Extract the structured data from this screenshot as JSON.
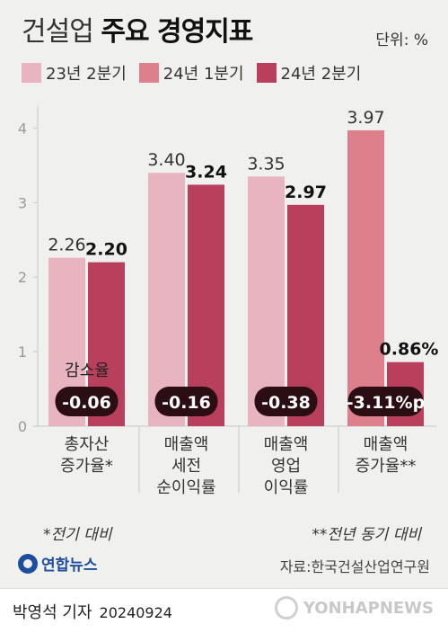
{
  "header": {
    "title_light": "건설업",
    "title_bold": "주요 경영지표",
    "unit": "단위: %"
  },
  "legend": [
    {
      "label": "23년 2분기",
      "color": "#e8b4bf"
    },
    {
      "label": "24년 1분기",
      "color": "#de7f8c"
    },
    {
      "label": "24년 2분기",
      "color": "#b8405c"
    }
  ],
  "chart_data": {
    "type": "bar",
    "categories": [
      [
        "총자산",
        "증가율*"
      ],
      [
        "매출액",
        "세전",
        "순이익률"
      ],
      [
        "매출액",
        "영업",
        "이익률"
      ],
      [
        "매출액",
        "증가율**"
      ]
    ],
    "groups": [
      {
        "bars": [
          {
            "series": 0,
            "value": 2.26,
            "label": "2.26"
          },
          {
            "series": 2,
            "value": 2.2,
            "label": "2.20"
          }
        ],
        "change": "-0.06"
      },
      {
        "bars": [
          {
            "series": 0,
            "value": 3.4,
            "label": "3.40"
          },
          {
            "series": 2,
            "value": 3.24,
            "label": "3.24"
          }
        ],
        "change": "-0.16"
      },
      {
        "bars": [
          {
            "series": 0,
            "value": 3.35,
            "label": "3.35"
          },
          {
            "series": 2,
            "value": 2.97,
            "label": "2.97"
          }
        ],
        "change": "-0.38"
      },
      {
        "bars": [
          {
            "series": 1,
            "value": 3.97,
            "label": "3.97"
          },
          {
            "series": 2,
            "value": 0.86,
            "label": "0.86%"
          }
        ],
        "change": "-3.11%p"
      }
    ],
    "change_label": "감소율",
    "y_ticks": [
      "0",
      "1",
      "2",
      "3",
      "4"
    ],
    "ylim": [
      0,
      4.5
    ],
    "grid": false
  },
  "notes": {
    "left": "*전기 대비",
    "right": "**전년 동기 대비"
  },
  "logo_text": "연합뉴스",
  "source": "자료:한국건설산업연구원",
  "footer": {
    "byline": "박영석 기자",
    "date": "20240924",
    "watermark": "YONHAPNEWS"
  }
}
